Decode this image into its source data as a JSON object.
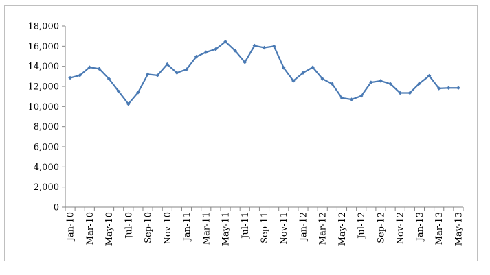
{
  "chart_data": {
    "type": "line",
    "title": "",
    "xlabel": "",
    "ylabel": "",
    "ylim": [
      0,
      18000
    ],
    "yticks": [
      0,
      2000,
      4000,
      6000,
      8000,
      10000,
      12000,
      14000,
      16000,
      18000
    ],
    "ytick_labels": [
      "0",
      "2,000",
      "4,000",
      "6,000",
      "8,000",
      "10,000",
      "12,000",
      "14,000",
      "16,000",
      "18,000"
    ],
    "grid": false,
    "legend": "none",
    "x": [
      "Jan-10",
      "Feb-10",
      "Mar-10",
      "Apr-10",
      "May-10",
      "Jun-10",
      "Jul-10",
      "Aug-10",
      "Sep-10",
      "Oct-10",
      "Nov-10",
      "Dec-10",
      "Jan-11",
      "Feb-11",
      "Mar-11",
      "Apr-11",
      "May-11",
      "Jun-11",
      "Jul-11",
      "Aug-11",
      "Sep-11",
      "Oct-11",
      "Nov-11",
      "Dec-11",
      "Jan-12",
      "Feb-12",
      "Mar-12",
      "Apr-12",
      "May-12",
      "Jun-12",
      "Jul-12",
      "Aug-12",
      "Sep-12",
      "Oct-12",
      "Nov-12",
      "Dec-12",
      "Jan-13",
      "Feb-13",
      "Mar-13",
      "Apr-13",
      "May-13"
    ],
    "xtick_labels": [
      "Jan-10",
      "Mar-10",
      "May-10",
      "Jul-10",
      "Sep-10",
      "Nov-10",
      "Jan-11",
      "Mar-11",
      "May-11",
      "Jul-11",
      "Sep-11",
      "Nov-11",
      "Jan-12",
      "Mar-12",
      "May-12",
      "Jul-12",
      "Sep-12",
      "Nov-12",
      "Jan-13",
      "Mar-13",
      "May-13"
    ],
    "series": [
      {
        "color": "#4a7ab4",
        "values": [
          12850,
          13100,
          13900,
          13750,
          12750,
          11500,
          10250,
          11400,
          13200,
          13100,
          14200,
          13350,
          13700,
          14950,
          15400,
          15700,
          16450,
          15550,
          14400,
          16050,
          15850,
          16000,
          13850,
          12550,
          13350,
          13900,
          12750,
          12250,
          10850,
          10700,
          11050,
          12400,
          12550,
          12250,
          11350,
          11350,
          12300,
          13050,
          11800,
          11850,
          11850
        ]
      }
    ]
  }
}
